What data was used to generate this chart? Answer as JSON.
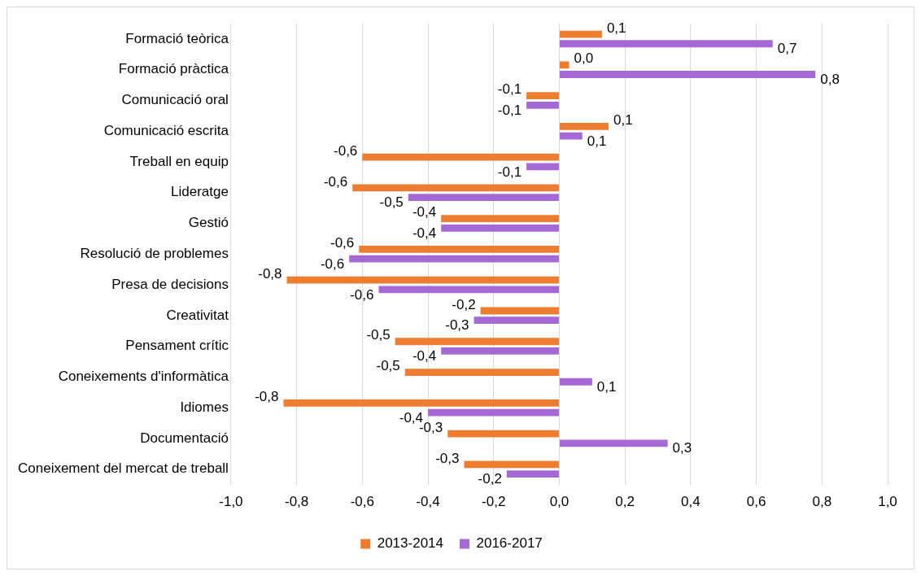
{
  "chart_data": {
    "type": "bar",
    "orientation": "horizontal",
    "categories": [
      "Formació teòrica",
      "Formació pràctica",
      "Comunicació oral",
      "Comunicació escrita",
      "Treball en equip",
      "Lideratge",
      "Gestió",
      "Resolució de problemes",
      "Presa de decisions",
      "Creativitat",
      "Pensament crític",
      "Coneixements d'informàtica",
      "Idiomes",
      "Documentació",
      "Coneixement del mercat de treball"
    ],
    "series": [
      {
        "name": "2013-2014",
        "color": "#ed7d31",
        "values": [
          0.13,
          0.03,
          -0.1,
          0.15,
          -0.6,
          -0.63,
          -0.36,
          -0.61,
          -0.83,
          -0.24,
          -0.5,
          -0.47,
          -0.84,
          -0.34,
          -0.29
        ],
        "value_labels": [
          "0,1",
          "0,0",
          "-0,1",
          "0,1",
          "-0,6",
          "-0,6",
          "-0,4",
          "-0,6",
          "-0,8",
          "-0,2",
          "-0,5",
          "-0,5",
          "-0,8",
          "-0,3",
          "-0,3"
        ]
      },
      {
        "name": "2016-2017",
        "color": "#a569d6",
        "values": [
          0.65,
          0.78,
          -0.1,
          0.07,
          -0.1,
          -0.46,
          -0.36,
          -0.64,
          -0.55,
          -0.26,
          -0.36,
          0.1,
          -0.4,
          0.33,
          -0.16
        ],
        "value_labels": [
          "0,7",
          "0,8",
          "-0,1",
          "0,1",
          "-0,1",
          "-0,5",
          "-0,4",
          "-0,6",
          "-0,6",
          "-0,3",
          "-0,4",
          "0,1",
          "-0,4",
          "0,3",
          "-0,2"
        ]
      }
    ],
    "xlim": [
      -1,
      1
    ],
    "xticks": [
      {
        "value": -1,
        "label": "-1,0"
      },
      {
        "value": -0.8,
        "label": "-0,8"
      },
      {
        "value": -0.6,
        "label": "-0,6"
      },
      {
        "value": -0.4,
        "label": "-0,4"
      },
      {
        "value": -0.2,
        "label": "-0,2"
      },
      {
        "value": 0,
        "label": "0,0"
      },
      {
        "value": 0.2,
        "label": "0,2"
      },
      {
        "value": 0.4,
        "label": "0,4"
      },
      {
        "value": 0.6,
        "label": "0,6"
      },
      {
        "value": 0.8,
        "label": "0,8"
      },
      {
        "value": 1,
        "label": "1,0"
      }
    ],
    "grid": "x",
    "legend": "bottom"
  }
}
